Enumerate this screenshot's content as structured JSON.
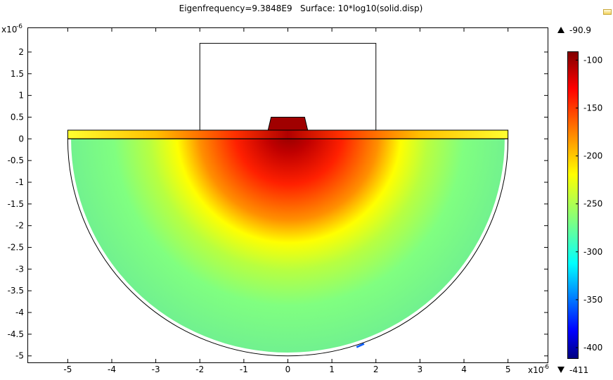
{
  "chart_data": {
    "type": "heatmap",
    "title": "Eigenfrequency=9.3848E9   Surface: 10*log10(solid.disp)",
    "x_multiplier": "x10",
    "x_multiplier_exp": "-6",
    "y_multiplier": "x10",
    "y_multiplier_exp": "-6",
    "xlim": [
      -5.9,
      5.9
    ],
    "ylim": [
      -5.15,
      2.55
    ],
    "x_ticks": [
      "-5",
      "-4",
      "-3",
      "-2",
      "-1",
      "0",
      "1",
      "2",
      "3",
      "4",
      "5"
    ],
    "y_ticks": [
      "2",
      "1.5",
      "1",
      "0.5",
      "0",
      "-0.5",
      "-1",
      "-1.5",
      "-2",
      "-2.5",
      "-3",
      "-3.5",
      "-4",
      "-4.5",
      "-5"
    ],
    "y_tick_values": [
      2,
      1.5,
      1,
      0.5,
      0,
      -0.5,
      -1,
      -1.5,
      -2,
      -2.5,
      -3,
      -3.5,
      -4,
      -4.5,
      -5
    ],
    "x_tick_values": [
      -5,
      -4,
      -3,
      -2,
      -1,
      0,
      1,
      2,
      3,
      4,
      5
    ],
    "geometry": {
      "substrate_radius": 5,
      "layer_top": 0.2,
      "layer_halfwidth": 5,
      "box": {
        "x0": -2,
        "x1": 2,
        "y0": 0.2,
        "y1": 2.2
      },
      "electrode": {
        "x_bottom": [
          -0.45,
          0.45
        ],
        "x_top": [
          -0.38,
          0.38
        ],
        "y0": 0.2,
        "y1": 0.5
      }
    },
    "field_description_center": [
      0,
      0.1
    ],
    "colorbar": {
      "max_label": "-90.9",
      "min_label": "-411",
      "max_value": -90.9,
      "min_value": -411,
      "tick_labels": [
        "-100",
        "-150",
        "-200",
        "-250",
        "-300",
        "-350",
        "-400"
      ],
      "tick_values": [
        -100,
        -150,
        -200,
        -250,
        -300,
        -350,
        -400
      ],
      "colormap": [
        "#7f0000",
        "#ff0000",
        "#ff8000",
        "#ffff00",
        "#80ff80",
        "#00ffff",
        "#0080ff",
        "#0000ff",
        "#00007f"
      ]
    }
  }
}
